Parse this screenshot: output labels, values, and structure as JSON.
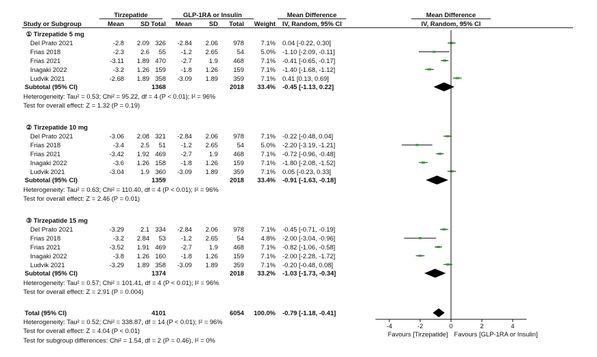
{
  "header": {
    "group_tirzepatide": "Tirzepatide",
    "group_comparator": "GLP-1RA or Insulin",
    "effect_title": "Mean Difference",
    "plot_title": "Mean Difference",
    "col_study": "Study or Subgroup",
    "col_mean1": "Mean",
    "col_sd1": "SD",
    "col_total1": "Total",
    "col_mean2": "Mean",
    "col_sd2": "SD",
    "col_total2": "Total",
    "col_weight": "Weight",
    "col_effect": "IV, Random, 95% CI",
    "col_plot": "IV, Random, 95% CI"
  },
  "chart_data": {
    "type": "forest",
    "x_ticks": [
      -4,
      -2,
      0,
      2,
      4
    ],
    "x_range": [
      -4.9,
      4.9
    ],
    "x_label_left": "Favours [Tirzepatide]",
    "x_label_right": "Favours [GLP-1RA or Insulin]",
    "subgroups": [
      {
        "title": "① Tirzepatide 5 mg",
        "studies": [
          {
            "name": "Del Prato 2021",
            "m1": "-2.8",
            "sd1": "2.09",
            "n1": "326",
            "m2": "-2.84",
            "sd2": "2.06",
            "n2": "978",
            "weight": "7.1%",
            "ci": "0.04 [-0.22, 0.30]",
            "md": 0.04,
            "lo": -0.22,
            "hi": 0.3
          },
          {
            "name": "Frias 2018",
            "m1": "-2.3",
            "sd1": "2.6",
            "n1": "55",
            "m2": "-1.2",
            "sd2": "2.65",
            "n2": "54",
            "weight": "5.0%",
            "ci": "-1.10 [-2.09, -0.11]",
            "md": -1.1,
            "lo": -2.09,
            "hi": -0.11
          },
          {
            "name": "Frias 2021",
            "m1": "-3.11",
            "sd1": "1.89",
            "n1": "470",
            "m2": "-2.7",
            "sd2": "1.9",
            "n2": "468",
            "weight": "7.1%",
            "ci": "-0.41 [-0.65, -0.17]",
            "md": -0.41,
            "lo": -0.65,
            "hi": -0.17
          },
          {
            "name": "Inagaki 2022",
            "m1": "-3.2",
            "sd1": "1.26",
            "n1": "159",
            "m2": "-1.8",
            "sd2": "1.26",
            "n2": "159",
            "weight": "7.1%",
            "ci": "-1.40 [-1.68, -1.12]",
            "md": -1.4,
            "lo": -1.68,
            "hi": -1.12
          },
          {
            "name": "Ludvik 2021",
            "m1": "-2.68",
            "sd1": "1.89",
            "n1": "358",
            "m2": "-3.09",
            "sd2": "1.89",
            "n2": "359",
            "weight": "7.1%",
            "ci": "0.41 [0.13, 0.69]",
            "md": 0.41,
            "lo": 0.13,
            "hi": 0.69
          }
        ],
        "subtotal": {
          "label": "Subtotal (95% CI)",
          "n1": "1368",
          "n2": "2018",
          "weight": "33.4%",
          "ci": "-0.45 [-1.13, 0.22]",
          "md": -0.45,
          "lo": -1.13,
          "hi": 0.22
        },
        "heterogeneity": "Heterogeneity: Tau² = 0.53; Chi² = 95.22, df = 4 (P < 0.01); I² = 96%",
        "overall_effect": "Test for overall effect: Z = 1.32 (P = 0.19)"
      },
      {
        "title": "② Tirzepatide 10 mg",
        "studies": [
          {
            "name": "Del Prato 2021",
            "m1": "-3.06",
            "sd1": "2.08",
            "n1": "321",
            "m2": "-2.84",
            "sd2": "2.06",
            "n2": "978",
            "weight": "7.1%",
            "ci": "-0.22 [-0.48, 0.04]",
            "md": -0.22,
            "lo": -0.48,
            "hi": 0.04
          },
          {
            "name": "Frias 2018",
            "m1": "-3.4",
            "sd1": "2.5",
            "n1": "51",
            "m2": "-1.2",
            "sd2": "2.65",
            "n2": "54",
            "weight": "5.0%",
            "ci": "-2.20 [-3.19, -1.21]",
            "md": -2.2,
            "lo": -3.19,
            "hi": -1.21
          },
          {
            "name": "Frias 2021",
            "m1": "-3.42",
            "sd1": "1.92",
            "n1": "469",
            "m2": "-2.7",
            "sd2": "1.9",
            "n2": "468",
            "weight": "7.1%",
            "ci": "-0.72 [-0.96, -0.48]",
            "md": -0.72,
            "lo": -0.96,
            "hi": -0.48
          },
          {
            "name": "Inagaki 2022",
            "m1": "-3.6",
            "sd1": "1.26",
            "n1": "158",
            "m2": "-1.8",
            "sd2": "1.26",
            "n2": "159",
            "weight": "7.1%",
            "ci": "-1.80 [-2.08, -1.52]",
            "md": -1.8,
            "lo": -2.08,
            "hi": -1.52
          },
          {
            "name": "Ludvik 2021",
            "m1": "-3.04",
            "sd1": "1.9",
            "n1": "360",
            "m2": "-3.09",
            "sd2": "1.89",
            "n2": "359",
            "weight": "7.1%",
            "ci": "0.05 [-0.23, 0.33]",
            "md": 0.05,
            "lo": -0.23,
            "hi": 0.33
          }
        ],
        "subtotal": {
          "label": "Subtotal (95% CI)",
          "n1": "1359",
          "n2": "2018",
          "weight": "33.4%",
          "ci": "-0.91 [-1.63, -0.18]",
          "md": -0.91,
          "lo": -1.63,
          "hi": -0.18
        },
        "heterogeneity": "Heterogeneity: Tau² = 0.63; Chi² = 110.40, df = 4 (P < 0.01); I² = 96%",
        "overall_effect": "Test for overall effect: Z = 2.46 (P = 0.01)"
      },
      {
        "title": "③ Tirzepatide 15 mg",
        "studies": [
          {
            "name": "Del Prato 2021",
            "m1": "-3.29",
            "sd1": "2.1",
            "n1": "334",
            "m2": "-2.84",
            "sd2": "2.06",
            "n2": "978",
            "weight": "7.1%",
            "ci": "-0.45 [-0.71, -0.19]",
            "md": -0.45,
            "lo": -0.71,
            "hi": -0.19
          },
          {
            "name": "Frias 2018",
            "m1": "-3.2",
            "sd1": "2.84",
            "n1": "53",
            "m2": "-1.2",
            "sd2": "2.65",
            "n2": "54",
            "weight": "4.8%",
            "ci": "-2.00 [-3.04, -0.96]",
            "md": -2.0,
            "lo": -3.04,
            "hi": -0.96
          },
          {
            "name": "Frias 2021",
            "m1": "-3.52",
            "sd1": "1.91",
            "n1": "469",
            "m2": "-2.7",
            "sd2": "1.9",
            "n2": "468",
            "weight": "7.1%",
            "ci": "-0.82 [-1.06, -0.58]",
            "md": -0.82,
            "lo": -1.06,
            "hi": -0.58
          },
          {
            "name": "Inagaki 2022",
            "m1": "-3.8",
            "sd1": "1.26",
            "n1": "160",
            "m2": "-1.8",
            "sd2": "1.26",
            "n2": "159",
            "weight": "7.1%",
            "ci": "-2.00 [-2.28, -1.72]",
            "md": -2.0,
            "lo": -2.28,
            "hi": -1.72
          },
          {
            "name": "Ludvik 2021",
            "m1": "-3.29",
            "sd1": "1.89",
            "n1": "358",
            "m2": "-3.09",
            "sd2": "1.89",
            "n2": "359",
            "weight": "7.1%",
            "ci": "-0.20 [-0.48, 0.08]",
            "md": -0.2,
            "lo": -0.48,
            "hi": 0.08
          }
        ],
        "subtotal": {
          "label": "Subtotal (95% CI)",
          "n1": "1374",
          "n2": "2018",
          "weight": "33.2%",
          "ci": "-1.03 [-1.73, -0.34]",
          "md": -1.03,
          "lo": -1.73,
          "hi": -0.34
        },
        "heterogeneity": "Heterogeneity: Tau² = 0.57; Chi² = 101.41, df = 4 (P < 0.01); I² = 96%",
        "overall_effect": "Test for overall effect: Z = 2.91 (P = 0.004)"
      }
    ],
    "total": {
      "label": "Total (95% CI)",
      "n1": "4101",
      "n2": "6054",
      "weight": "100.0%",
      "ci": "-0.79 [-1.18, -0.41]",
      "md": -0.79,
      "lo": -1.18,
      "hi": -0.41
    },
    "total_heterogeneity": "Heterogeneity: Tau² = 0.52; Chi² = 338.87, df = 14 (P < 0.01); I² = 96%",
    "total_overall_effect": "Test for overall effect: Z = 4.04 (P < 0.01)",
    "subgroup_differences": "Test for subgroup differences: Chi² = 1.54, df = 2 (P = 0.46), I² = 0%"
  },
  "colors": {
    "point": "#2e9d2e",
    "line": "#111111",
    "diamond": "#000000"
  }
}
